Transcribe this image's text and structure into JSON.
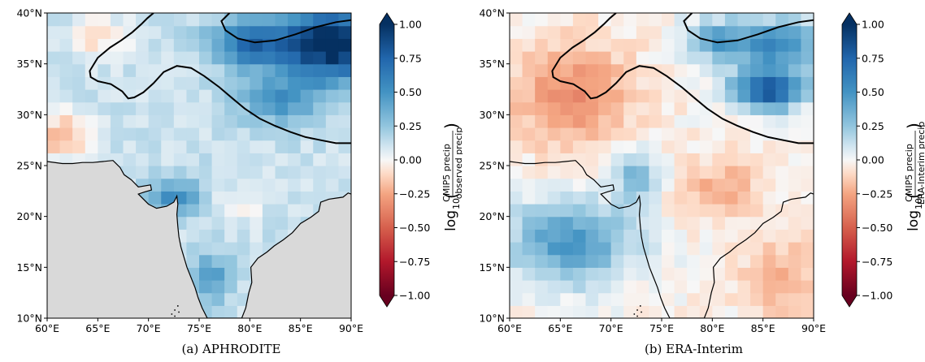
{
  "panels": [
    {
      "id": "a",
      "caption": "(a)  APHRODITE",
      "colorbar_label_prefix": "log",
      "colorbar_label_sub": "10",
      "ratio_numerator": "CMIP5 precip",
      "ratio_denominator": "observed precip",
      "land_mask_color": "#d9d9d9",
      "has_land_mask": true
    },
    {
      "id": "b",
      "caption": "(b)  ERA-Interim",
      "colorbar_label_prefix": "log",
      "colorbar_label_sub": "10",
      "ratio_numerator": "CMIP5 precip",
      "ratio_denominator": "ERA-Interim precip",
      "has_land_mask": false
    }
  ],
  "chart_data": [
    {
      "type": "heatmap",
      "title": "(a) APHRODITE",
      "x_ticks": [
        "60°E",
        "65°E",
        "70°E",
        "75°E",
        "80°E",
        "85°E",
        "90°E"
      ],
      "y_ticks": [
        "10°N",
        "15°N",
        "20°N",
        "25°N",
        "30°N",
        "35°N",
        "40°N"
      ],
      "xlim": [
        60,
        90
      ],
      "ylim": [
        10,
        40
      ],
      "colorbar": {
        "colormap": "RdBu",
        "range": [
          -1.0,
          1.0
        ],
        "extend": "both",
        "ticks": [
          "1.00",
          "0.75",
          "0.50",
          "0.25",
          "0.00",
          "−0.25",
          "−0.50",
          "−0.75",
          "−1.00"
        ]
      },
      "features": [
        "coastlines",
        "Himalaya contour",
        "grey land mask over ocean"
      ],
      "summary_values": {
        "Tibetan Plateau (NE)": 1.0,
        "Himalaya foothills": 0.6,
        "Northwest (60-65E, 28-35N)": -0.1,
        "Central India": 0.15,
        "Gujarat region": 0.55,
        "Western Ghats south": 0.45
      }
    },
    {
      "type": "heatmap",
      "title": "(b) ERA-Interim",
      "x_ticks": [
        "60°E",
        "65°E",
        "70°E",
        "75°E",
        "80°E",
        "85°E",
        "90°E"
      ],
      "y_ticks": [
        "10°N",
        "15°N",
        "20°N",
        "25°N",
        "30°N",
        "35°N",
        "40°N"
      ],
      "xlim": [
        60,
        90
      ],
      "ylim": [
        10,
        40
      ],
      "colorbar": {
        "colormap": "RdBu",
        "range": [
          -1.0,
          1.0
        ],
        "extend": "both",
        "ticks": [
          "1.00",
          "0.75",
          "0.50",
          "0.25",
          "0.00",
          "−0.25",
          "−0.50",
          "−0.75",
          "−1.00"
        ]
      },
      "features": [
        "coastlines",
        "Himalaya contour"
      ],
      "summary_values": {
        "Tibetan Plateau (NE)": 0.8,
        "Northwest (60-70E, 28-37N)": -0.25,
        "Arabian Sea": 0.5,
        "Central India": -0.1,
        "Bay of Bengal": -0.15
      }
    }
  ]
}
